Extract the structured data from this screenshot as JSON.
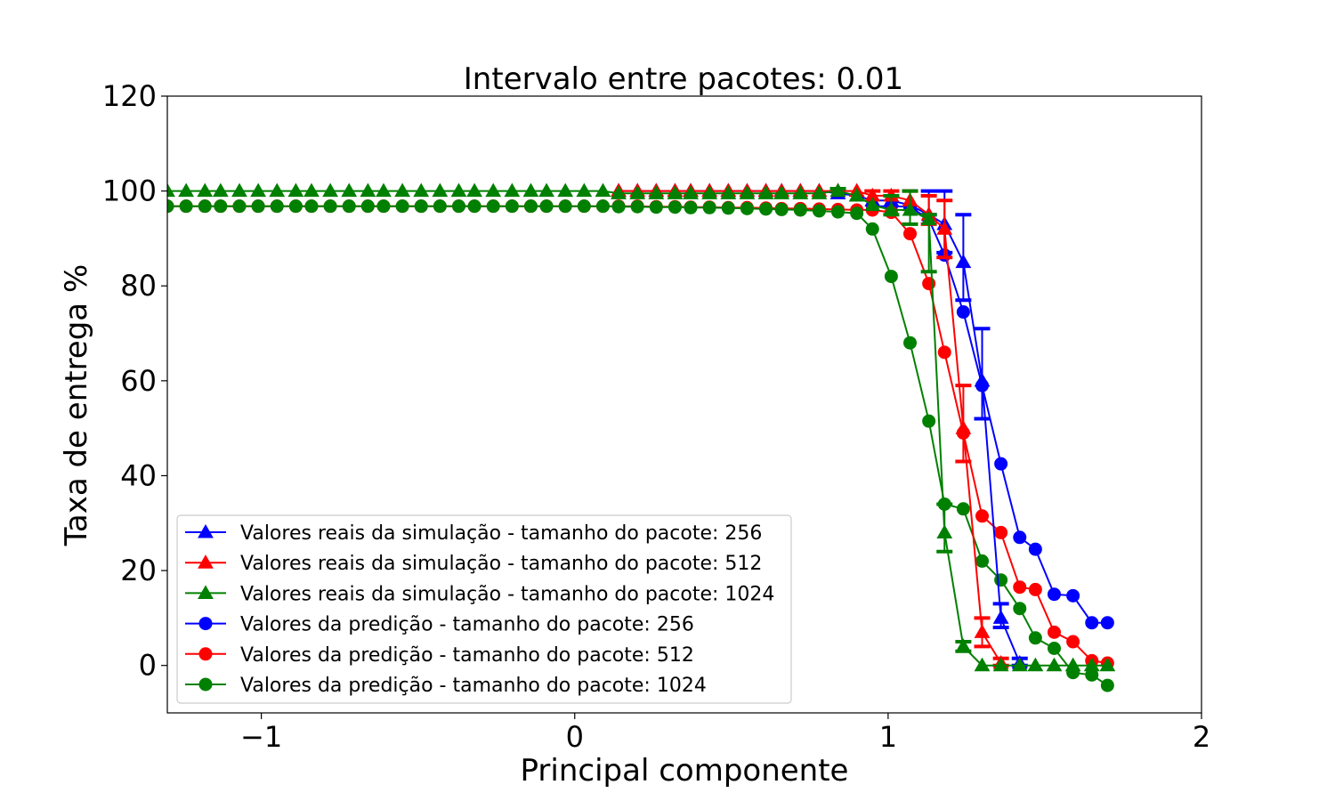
{
  "chart_data": {
    "type": "line",
    "title": "Intervalo entre pacotes: 0.01",
    "xlabel": "Principal componente",
    "ylabel": "Taxa de entrega %",
    "xlim": [
      -1.3,
      2.0
    ],
    "ylim": [
      -10,
      120
    ],
    "xticks": [
      -1,
      0,
      1,
      2
    ],
    "xtick_labels": [
      "−1",
      "0",
      "1",
      "2"
    ],
    "yticks": [
      0,
      20,
      40,
      60,
      80,
      100,
      120
    ],
    "ytick_labels": [
      "0",
      "20",
      "40",
      "60",
      "80",
      "100",
      "120"
    ],
    "grid": false,
    "legend_position": "lower-left",
    "series": [
      {
        "name": "Valores reais da simulação - tamanho do pacote: 256",
        "color": "#0000ff",
        "marker": "triangle",
        "x": [
          0.14,
          0.2,
          0.26,
          0.32,
          0.37,
          0.43,
          0.49,
          0.55,
          0.61,
          0.66,
          0.72,
          0.78,
          0.84,
          0.9,
          0.95,
          1.01,
          1.07,
          1.13,
          1.18,
          1.24,
          1.3,
          1.36,
          1.42
        ],
        "y": [
          100,
          100,
          100,
          100,
          100,
          100,
          100,
          100,
          100,
          100,
          100,
          100,
          99.5,
          99,
          98,
          98,
          97,
          95,
          93,
          85,
          60,
          10,
          0.5
        ],
        "err_low": [
          null,
          null,
          null,
          null,
          null,
          null,
          null,
          null,
          null,
          null,
          null,
          null,
          null,
          null,
          null,
          null,
          null,
          95,
          87,
          77,
          52,
          8,
          0
        ],
        "err_high": [
          null,
          null,
          null,
          null,
          null,
          null,
          null,
          null,
          null,
          null,
          null,
          null,
          null,
          null,
          null,
          null,
          null,
          100,
          100,
          95,
          71,
          13,
          1.5
        ]
      },
      {
        "name": "Valores reais da simulação - tamanho do pacote: 512",
        "color": "#ff0000",
        "marker": "triangle",
        "x": [
          0.14,
          0.2,
          0.26,
          0.32,
          0.37,
          0.43,
          0.49,
          0.55,
          0.61,
          0.66,
          0.72,
          0.78,
          0.84,
          0.9,
          0.95,
          1.01,
          1.07,
          1.13,
          1.18,
          1.24,
          1.3,
          1.36
        ],
        "y": [
          100,
          100,
          100,
          100,
          100,
          100,
          100,
          100,
          100,
          100,
          100,
          100,
          100,
          100,
          99,
          99,
          98,
          95,
          92,
          50,
          7,
          0.5
        ],
        "err_low": [
          null,
          null,
          null,
          null,
          null,
          null,
          null,
          null,
          null,
          null,
          null,
          null,
          null,
          null,
          null,
          null,
          null,
          93,
          86,
          43,
          4,
          0
        ],
        "err_high": [
          null,
          null,
          null,
          null,
          null,
          null,
          null,
          null,
          null,
          null,
          null,
          null,
          null,
          null,
          100,
          100,
          100,
          99,
          98,
          59,
          10,
          1.5
        ]
      },
      {
        "name": "Valores reais da simulação - tamanho do pacote: 1024",
        "color": "#008000",
        "marker": "triangle",
        "x": [
          -1.3,
          -1.24,
          -1.18,
          -1.13,
          -1.07,
          -1.01,
          -0.95,
          -0.89,
          -0.84,
          -0.78,
          -0.72,
          -0.66,
          -0.61,
          -0.55,
          -0.49,
          -0.43,
          -0.37,
          -0.32,
          -0.26,
          -0.2,
          -0.14,
          -0.09,
          -0.03,
          0.03,
          0.09,
          0.14,
          0.2,
          0.26,
          0.32,
          0.37,
          0.43,
          0.49,
          0.55,
          0.61,
          0.66,
          0.72,
          0.78,
          0.84,
          0.9,
          0.95,
          1.01,
          1.07,
          1.13,
          1.18,
          1.24,
          1.3,
          1.36,
          1.42,
          1.47,
          1.53,
          1.59,
          1.65,
          1.7
        ],
        "y": [
          100,
          100,
          100,
          100,
          100,
          100,
          100,
          100,
          100,
          100,
          100,
          100,
          100,
          100,
          100,
          100,
          100,
          100,
          100,
          100,
          100,
          100,
          100,
          100,
          100,
          99.5,
          99.5,
          99.5,
          99.5,
          99.5,
          99.5,
          99.5,
          99.5,
          99.5,
          99.5,
          99.5,
          99.5,
          100,
          99,
          97,
          96,
          96,
          94,
          28,
          4,
          0,
          0,
          0,
          0,
          0,
          0,
          0,
          0
        ],
        "err_low": [
          null,
          null,
          null,
          null,
          null,
          null,
          null,
          null,
          null,
          null,
          null,
          null,
          null,
          null,
          null,
          null,
          null,
          null,
          null,
          null,
          null,
          null,
          null,
          null,
          null,
          null,
          null,
          null,
          null,
          null,
          null,
          null,
          null,
          null,
          null,
          null,
          null,
          null,
          null,
          null,
          95,
          93,
          83,
          24,
          3,
          null,
          null,
          null,
          null,
          null,
          null,
          null,
          null
        ],
        "err_high": [
          null,
          null,
          null,
          null,
          null,
          null,
          null,
          null,
          null,
          null,
          null,
          null,
          null,
          null,
          null,
          null,
          null,
          null,
          null,
          null,
          null,
          null,
          null,
          null,
          null,
          null,
          null,
          null,
          null,
          null,
          null,
          null,
          null,
          null,
          null,
          null,
          null,
          100.5,
          null,
          null,
          99,
          100,
          95,
          34,
          5,
          null,
          null,
          null,
          null,
          null,
          null,
          null,
          null
        ]
      },
      {
        "name": "Valores da predição - tamanho do pacote: 256",
        "color": "#0000ff",
        "marker": "circle",
        "x": [
          0.95,
          1.01,
          1.07,
          1.13,
          1.18,
          1.24,
          1.3,
          1.36,
          1.42,
          1.47,
          1.53,
          1.59,
          1.65,
          1.7
        ],
        "y": [
          96.8,
          96.8,
          96.7,
          94,
          86.5,
          74.5,
          59,
          42.5,
          27,
          24.5,
          15,
          14.7,
          9,
          9
        ]
      },
      {
        "name": "Valores da predição - tamanho do pacote: 512",
        "color": "#ff0000",
        "marker": "circle",
        "x": [
          -1.3,
          -1.24,
          -1.18,
          -1.13,
          -1.07,
          -1.01,
          -0.95,
          -0.89,
          -0.84,
          -0.78,
          -0.72,
          -0.66,
          -0.61,
          -0.55,
          -0.49,
          -0.43,
          -0.37,
          -0.32,
          -0.26,
          -0.2,
          -0.14,
          -0.09,
          -0.03,
          0.03,
          0.09,
          0.14,
          0.2,
          0.26,
          0.32,
          0.37,
          0.43,
          0.49,
          0.55,
          0.61,
          0.66,
          0.72,
          0.78,
          0.84,
          0.9,
          0.95,
          1.01,
          1.07,
          1.13,
          1.18,
          1.24,
          1.3,
          1.36,
          1.42,
          1.47,
          1.53,
          1.59,
          1.65,
          1.7
        ],
        "y": [
          96.8,
          96.8,
          96.8,
          96.8,
          96.8,
          96.8,
          96.8,
          96.8,
          96.8,
          96.8,
          96.8,
          96.8,
          96.8,
          96.8,
          96.8,
          96.8,
          96.8,
          96.8,
          96.8,
          96.8,
          96.8,
          96.8,
          96.8,
          96.8,
          96.8,
          96.8,
          96.8,
          96.7,
          96.7,
          96.6,
          96.6,
          96.5,
          96.5,
          96.4,
          96.3,
          96.3,
          96.2,
          96.1,
          96,
          96,
          95.5,
          91,
          80.5,
          66,
          49,
          31.5,
          28,
          16.5,
          16,
          7,
          5,
          1,
          0.5
        ]
      },
      {
        "name": "Valores da predição - tamanho do pacote: 1024",
        "color": "#008000",
        "marker": "circle",
        "x": [
          -1.3,
          -1.24,
          -1.18,
          -1.13,
          -1.07,
          -1.01,
          -0.95,
          -0.89,
          -0.84,
          -0.78,
          -0.72,
          -0.66,
          -0.61,
          -0.55,
          -0.49,
          -0.43,
          -0.37,
          -0.32,
          -0.26,
          -0.2,
          -0.14,
          -0.09,
          -0.03,
          0.03,
          0.09,
          0.14,
          0.2,
          0.26,
          0.32,
          0.37,
          0.43,
          0.49,
          0.55,
          0.61,
          0.66,
          0.72,
          0.78,
          0.84,
          0.9,
          0.95,
          1.01,
          1.07,
          1.13,
          1.18,
          1.24,
          1.3,
          1.36,
          1.42,
          1.47,
          1.53,
          1.59,
          1.65,
          1.7
        ],
        "y": [
          96.8,
          96.8,
          96.8,
          96.8,
          96.8,
          96.8,
          96.8,
          96.8,
          96.8,
          96.8,
          96.8,
          96.8,
          96.8,
          96.8,
          96.8,
          96.8,
          96.8,
          96.8,
          96.8,
          96.8,
          96.8,
          96.8,
          96.8,
          96.8,
          96.8,
          96.7,
          96.7,
          96.6,
          96.6,
          96.5,
          96.5,
          96.4,
          96.3,
          96.2,
          96.1,
          96,
          95.8,
          95.6,
          95.3,
          92,
          82,
          68,
          51.5,
          34,
          33,
          22,
          18,
          12,
          5.8,
          3.6,
          -1.5,
          -2,
          -4.2
        ]
      }
    ]
  }
}
